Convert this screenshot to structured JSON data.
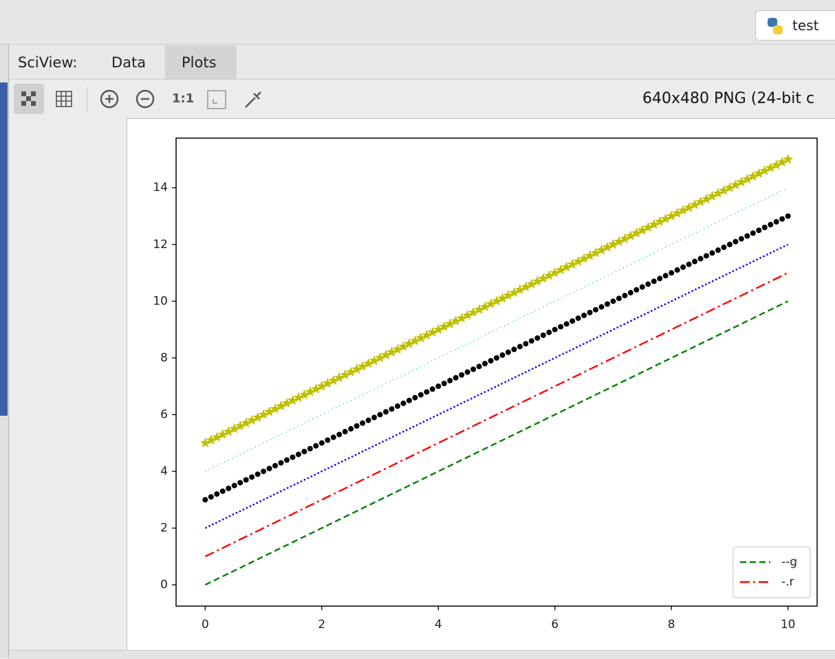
{
  "ui": {
    "run_config": "test",
    "sciview_label": "SciView:",
    "tabs": [
      "Data",
      "Plots"
    ],
    "zoom_ratio": "1:1",
    "image_info": "640x480 PNG (24-bit c"
  },
  "chart_data": {
    "type": "line",
    "legend": "lower right",
    "xlim": [
      -0.5,
      10.5
    ],
    "xticks": [
      0,
      2,
      4,
      6,
      8,
      10
    ],
    "ylim": [
      -0.75,
      15.75
    ],
    "yticks": [
      0,
      2,
      4,
      6,
      8,
      10,
      12,
      14
    ],
    "series": [
      {
        "name": "--g",
        "color": "#008000",
        "linestyle": "dashed",
        "x": [
          0,
          10
        ],
        "values": [
          0,
          10
        ]
      },
      {
        "name": "-.r",
        "color": "#ff0000",
        "linestyle": "dashdot",
        "x": [
          0,
          10
        ],
        "values": [
          1,
          11
        ]
      },
      {
        "color": "#0000ff",
        "linestyle": "dotted",
        "x": [
          0,
          10
        ],
        "values": [
          2,
          12
        ]
      },
      {
        "color": "#000000",
        "marker": "point",
        "x": [
          0,
          0.1,
          0.2,
          0.3,
          0.4,
          0.5,
          0.6,
          0.7,
          0.8,
          0.9,
          1,
          1.1,
          1.2,
          1.3,
          1.4,
          1.5,
          1.6,
          1.7,
          1.8,
          1.9,
          2,
          2.1,
          2.2,
          2.3,
          2.4,
          2.5,
          2.6,
          2.7,
          2.8,
          2.9,
          3,
          3.1,
          3.2,
          3.3,
          3.4,
          3.5,
          3.6,
          3.7,
          3.8,
          3.9,
          4,
          4.1,
          4.2,
          4.3,
          4.4,
          4.5,
          4.6,
          4.7,
          4.8,
          4.9,
          5,
          5.1,
          5.2,
          5.3,
          5.4,
          5.5,
          5.6,
          5.7,
          5.8,
          5.9,
          6,
          6.1,
          6.2,
          6.3,
          6.4,
          6.5,
          6.6,
          6.7,
          6.8,
          6.9,
          7,
          7.1,
          7.2,
          7.3,
          7.4,
          7.5,
          7.6,
          7.7,
          7.8,
          7.9,
          8,
          8.1,
          8.2,
          8.3,
          8.4,
          8.5,
          8.6,
          8.7,
          8.8,
          8.9,
          9,
          9.1,
          9.2,
          9.3,
          9.4,
          9.5,
          9.6,
          9.7,
          9.8,
          9.9,
          10
        ],
        "values": [
          3,
          3.1,
          3.2,
          3.3,
          3.4,
          3.5,
          3.6,
          3.7,
          3.8,
          3.9,
          4,
          4.1,
          4.2,
          4.3,
          4.4,
          4.5,
          4.6,
          4.7,
          4.8,
          4.9,
          5,
          5.1,
          5.2,
          5.3,
          5.4,
          5.5,
          5.6,
          5.7,
          5.8,
          5.9,
          6,
          6.1,
          6.2,
          6.3,
          6.4,
          6.5,
          6.6,
          6.7,
          6.8,
          6.9,
          7,
          7.1,
          7.2,
          7.3,
          7.4,
          7.5,
          7.6,
          7.7,
          7.8,
          7.9,
          8,
          8.1,
          8.2,
          8.3,
          8.4,
          8.5,
          8.6,
          8.7,
          8.8,
          8.9,
          9,
          9.1,
          9.2,
          9.3,
          9.4,
          9.5,
          9.6,
          9.7,
          9.8,
          9.9,
          10,
          10.1,
          10.2,
          10.3,
          10.4,
          10.5,
          10.6,
          10.7,
          10.8,
          10.9,
          11,
          11.1,
          11.2,
          11.3,
          11.4,
          11.5,
          11.6,
          11.7,
          11.8,
          11.9,
          12,
          12.1,
          12.2,
          12.3,
          12.4,
          12.5,
          12.6,
          12.7,
          12.8,
          12.9,
          13
        ]
      },
      {
        "color": "#00bfbf",
        "linestyle": "fine-dotted",
        "x": [
          0,
          10
        ],
        "values": [
          4,
          14
        ]
      },
      {
        "color": "#bfbf00",
        "marker": "star",
        "x": [
          0,
          0.1,
          0.2,
          0.3,
          0.4,
          0.5,
          0.6,
          0.7,
          0.8,
          0.9,
          1,
          1.1,
          1.2,
          1.3,
          1.4,
          1.5,
          1.6,
          1.7,
          1.8,
          1.9,
          2,
          2.1,
          2.2,
          2.3,
          2.4,
          2.5,
          2.6,
          2.7,
          2.8,
          2.9,
          3,
          3.1,
          3.2,
          3.3,
          3.4,
          3.5,
          3.6,
          3.7,
          3.8,
          3.9,
          4,
          4.1,
          4.2,
          4.3,
          4.4,
          4.5,
          4.6,
          4.7,
          4.8,
          4.9,
          5,
          5.1,
          5.2,
          5.3,
          5.4,
          5.5,
          5.6,
          5.7,
          5.8,
          5.9,
          6,
          6.1,
          6.2,
          6.3,
          6.4,
          6.5,
          6.6,
          6.7,
          6.8,
          6.9,
          7,
          7.1,
          7.2,
          7.3,
          7.4,
          7.5,
          7.6,
          7.7,
          7.8,
          7.9,
          8,
          8.1,
          8.2,
          8.3,
          8.4,
          8.5,
          8.6,
          8.7,
          8.8,
          8.9,
          9,
          9.1,
          9.2,
          9.3,
          9.4,
          9.5,
          9.6,
          9.7,
          9.8,
          9.9,
          10
        ],
        "values": [
          5,
          5.1,
          5.2,
          5.3,
          5.4,
          5.5,
          5.6,
          5.7,
          5.8,
          5.9,
          6,
          6.1,
          6.2,
          6.3,
          6.4,
          6.5,
          6.6,
          6.7,
          6.8,
          6.9,
          7,
          7.1,
          7.2,
          7.3,
          7.4,
          7.5,
          7.6,
          7.7,
          7.8,
          7.9,
          8,
          8.1,
          8.2,
          8.3,
          8.4,
          8.5,
          8.6,
          8.7,
          8.8,
          8.9,
          9,
          9.1,
          9.2,
          9.3,
          9.4,
          9.5,
          9.6,
          9.7,
          9.8,
          9.9,
          10,
          10.1,
          10.2,
          10.3,
          10.4,
          10.5,
          10.6,
          10.7,
          10.8,
          10.9,
          11,
          11.1,
          11.2,
          11.3,
          11.4,
          11.5,
          11.6,
          11.7,
          11.8,
          11.9,
          12,
          12.1,
          12.2,
          12.3,
          12.4,
          12.5,
          12.6,
          12.7,
          12.8,
          12.9,
          13,
          13.1,
          13.2,
          13.3,
          13.4,
          13.5,
          13.6,
          13.7,
          13.8,
          13.9,
          14,
          14.1,
          14.2,
          14.3,
          14.4,
          14.5,
          14.6,
          14.7,
          14.8,
          14.9,
          15
        ]
      }
    ]
  }
}
